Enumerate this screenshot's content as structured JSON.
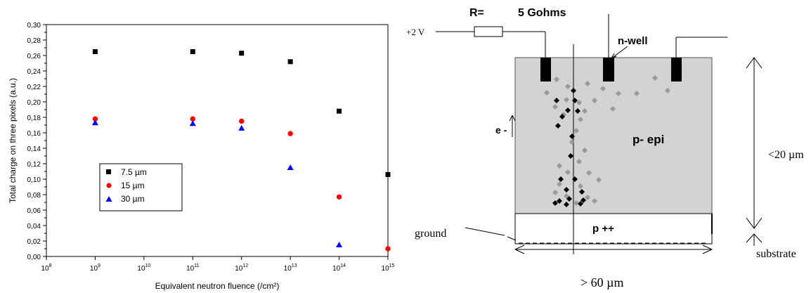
{
  "chart_data": {
    "type": "scatter",
    "title": "",
    "xlabel": "Equivalent neutron fluence (/cm²)",
    "ylabel": "Total charge on three pixels (a.u.)",
    "xscale": "log",
    "xlim": [
      100000000.0,
      1000000000000000.0
    ],
    "ylim": [
      0,
      0.3
    ],
    "x_ticks": [
      {
        "base": "10",
        "exp": "8"
      },
      {
        "base": "10",
        "exp": "9"
      },
      {
        "base": "10",
        "exp": "10"
      },
      {
        "base": "10",
        "exp": "11"
      },
      {
        "base": "10",
        "exp": "12"
      },
      {
        "base": "10",
        "exp": "13"
      },
      {
        "base": "10",
        "exp": "14"
      },
      {
        "base": "10",
        "exp": "15"
      }
    ],
    "y_ticks": [
      "0,00",
      "0,02",
      "0,04",
      "0,06",
      "0,08",
      "0,10",
      "0,12",
      "0,14",
      "0,16",
      "0,18",
      "0,20",
      "0,22",
      "0,24",
      "0,26",
      "0,28",
      "0,30"
    ],
    "legend_position": "lower-left-center",
    "series": [
      {
        "name": "7.5 µm",
        "marker": "square",
        "color": "#000000",
        "x": [
          1000000000.0,
          100000000000.0,
          1000000000000.0,
          10000000000000.0,
          100000000000000.0,
          1000000000000000.0
        ],
        "y": [
          0.265,
          0.265,
          0.263,
          0.252,
          0.188,
          0.106
        ]
      },
      {
        "name": "15 µm",
        "marker": "circle",
        "color": "#ff0000",
        "x": [
          1000000000.0,
          100000000000.0,
          1000000000000.0,
          10000000000000.0,
          100000000000000.0,
          1000000000000000.0
        ],
        "y": [
          0.178,
          0.178,
          0.175,
          0.159,
          0.077,
          0.01
        ]
      },
      {
        "name": "30 µm",
        "marker": "triangle",
        "color": "#0000ff",
        "x": [
          1000000000.0,
          100000000000.0,
          1000000000000.0,
          10000000000000.0,
          100000000000000.0
        ],
        "y": [
          0.173,
          0.172,
          0.166,
          0.115,
          0.015
        ]
      }
    ]
  },
  "diagram": {
    "resistor_label": "R=",
    "resistor_value": "5 Gohms",
    "voltage_label": "+2 V",
    "nwell_label": "n-well",
    "electron_label": "e -",
    "epi_label": "p- epi",
    "substrate_doping_label": "p ++",
    "ground_label": "ground",
    "thickness_label": "<20 µm",
    "substrate_label": "substrate",
    "width_label": "> 60 µm",
    "colors": {
      "epi_fill": "#d3d3d3",
      "electron_dark": "#000000",
      "electron_light": "#999999"
    }
  }
}
